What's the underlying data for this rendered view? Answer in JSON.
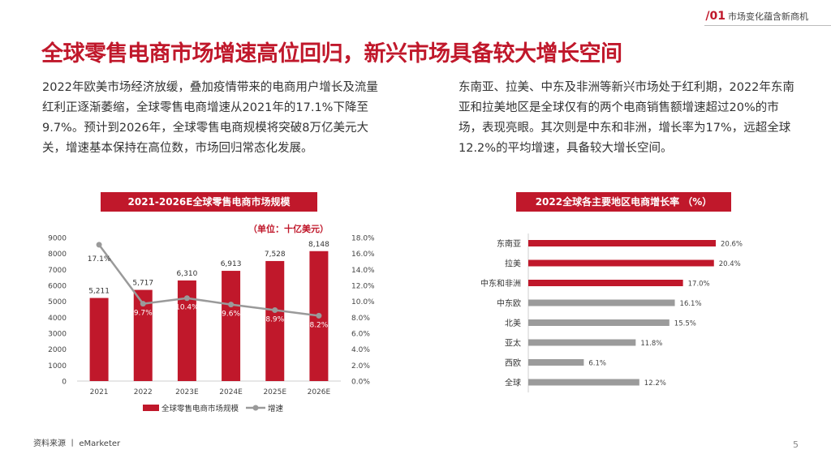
{
  "header": {
    "section_num": "/01",
    "section_label": "市场变化蕴含新商机",
    "title": "全球零售电商市场增速高位回归，新兴市场具备较大增长空间"
  },
  "paragraphs": {
    "left": "2022年欧美市场经济放缓，叠加疫情带来的电商用户增长及流量红利正逐渐萎缩，全球零售电商增速从2021年的17.1%下降至9.7%。预计到2026年，全球零售电商规模将突破8万亿美元大关，增速基本保持在高位数，市场回归常态化发展。",
    "right": "东南亚、拉美、中东及非洲等新兴市场处于红利期，2022年东南亚和拉美地区是全球仅有的两个电商销售额增速超过20%的市场，表现亮眼。其次则是中东和非洲，增长率为17%，远超全球12.2%的平均增速，具备较大增长空间。"
  },
  "colors": {
    "accent": "#c0182b",
    "line": "#9a9a9a",
    "gray_bar": "#9b9b9b"
  },
  "chart_data": [
    {
      "type": "bar",
      "title": "2021-2026E全球零售电商市场规模",
      "unit_note": "（单位：十亿美元）",
      "categories": [
        "2021",
        "2022",
        "2023E",
        "2024E",
        "2025E",
        "2026E"
      ],
      "series": [
        {
          "name": "全球零售电商市场规模",
          "type": "bar",
          "axis": "left",
          "values": [
            5211,
            5717,
            6310,
            6913,
            7528,
            8148
          ],
          "labels": [
            "5,211",
            "5,717",
            "6,310",
            "6,913",
            "7,528",
            "8,148"
          ]
        },
        {
          "name": "增速",
          "type": "line",
          "axis": "right",
          "values": [
            17.1,
            9.7,
            10.4,
            9.6,
            8.9,
            8.2
          ],
          "labels": [
            "17.1%",
            "9.7%",
            "10.4%",
            "9.6%",
            "8.9%",
            "8.2%"
          ]
        }
      ],
      "y_left": {
        "range": [
          0,
          9000
        ],
        "ticks": [
          "0",
          "1000",
          "2000",
          "3000",
          "4000",
          "5000",
          "6000",
          "7000",
          "8000",
          "9000"
        ]
      },
      "y_right": {
        "range": [
          0,
          18
        ],
        "ticks": [
          "0.0%",
          "2.0%",
          "4.0%",
          "6.0%",
          "8.0%",
          "10.0%",
          "12.0%",
          "14.0%",
          "16.0%",
          "18.0%"
        ]
      },
      "legend_position": "bottom",
      "grid": false
    },
    {
      "type": "bar",
      "orientation": "horizontal",
      "title": "2022全球各主要地区电商增长率 （%）",
      "categories": [
        "东南亚",
        "拉美",
        "中东和非洲",
        "中东欧",
        "北美",
        "亚太",
        "西欧",
        "全球"
      ],
      "values": [
        20.6,
        20.4,
        17.0,
        16.1,
        15.5,
        11.8,
        6.1,
        12.2
      ],
      "labels": [
        "20.6%",
        "20.4%",
        "17.0%",
        "16.1%",
        "15.5%",
        "11.8%",
        "6.1%",
        "12.2%"
      ],
      "bar_colors": [
        "#c0182b",
        "#c0182b",
        "#c0182b",
        "#9b9b9b",
        "#9b9b9b",
        "#9b9b9b",
        "#9b9b9b",
        "#9b9b9b"
      ],
      "x_range": [
        0,
        20.6
      ],
      "grid": false
    }
  ],
  "footer": {
    "source": "资料来源 丨 eMarketer",
    "page": "5"
  }
}
